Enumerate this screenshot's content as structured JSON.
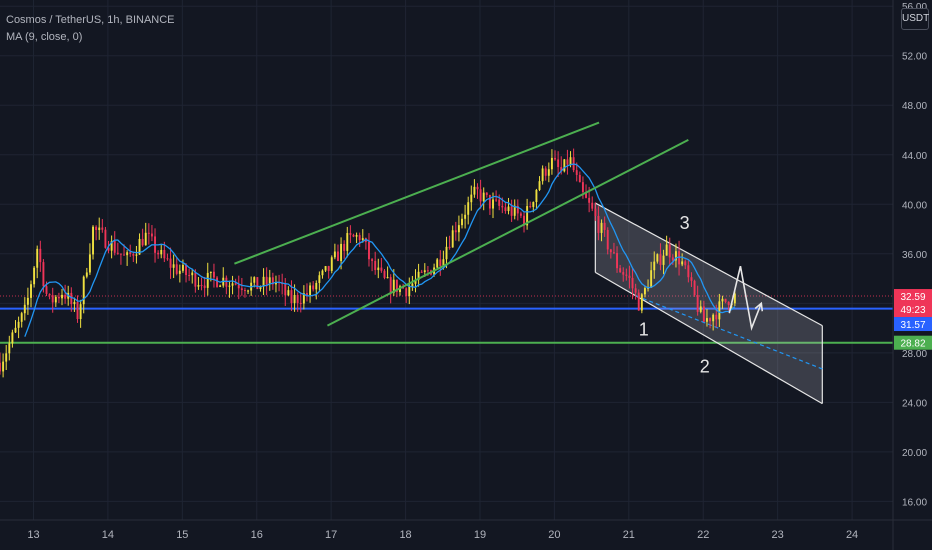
{
  "legend": {
    "title": "Cosmos / TetherUS, 1h, BINANCE",
    "indicator": "MA (9, close, 0)"
  },
  "currency": "USDT",
  "colors": {
    "background": "#131722",
    "bull": "#f0e040",
    "bear": "#ef3558",
    "ma": "#2196f3",
    "trendline": "#4caf50",
    "channel": "#e6e6e6",
    "blue_level": "#2962ff",
    "green_level": "#4caf50"
  },
  "chart_data": {
    "type": "candlestick",
    "x_ticks": [
      "13",
      "14",
      "15",
      "16",
      "17",
      "18",
      "19",
      "20",
      "21",
      "22",
      "23",
      "24"
    ],
    "y_ticks": [
      "16.00",
      "20.00",
      "24.00",
      "28.00",
      "32.00",
      "36.00",
      "40.00",
      "44.00",
      "48.00",
      "52.00",
      "56.00"
    ],
    "ylim": [
      14.5,
      56.5
    ],
    "xlim": [
      12.55,
      24.55
    ],
    "grid": true,
    "price_path": [
      [
        12.55,
        27.2
      ],
      [
        12.7,
        29.0
      ],
      [
        12.9,
        31.5
      ],
      [
        13.05,
        36.5
      ],
      [
        13.2,
        32.0
      ],
      [
        13.4,
        33.0
      ],
      [
        13.6,
        31.0
      ],
      [
        13.8,
        38.0
      ],
      [
        14.0,
        37.0
      ],
      [
        14.25,
        35.5
      ],
      [
        14.5,
        37.5
      ],
      [
        14.75,
        35.5
      ],
      [
        15.0,
        34.5
      ],
      [
        15.25,
        33.8
      ],
      [
        15.5,
        34.0
      ],
      [
        15.75,
        33.6
      ],
      [
        16.0,
        33.4
      ],
      [
        16.25,
        33.8
      ],
      [
        16.45,
        32.2
      ],
      [
        16.7,
        32.8
      ],
      [
        16.95,
        34.6
      ],
      [
        17.2,
        37.0
      ],
      [
        17.4,
        37.5
      ],
      [
        17.55,
        35.0
      ],
      [
        17.75,
        33.5
      ],
      [
        18.0,
        33.2
      ],
      [
        18.2,
        34.0
      ],
      [
        18.45,
        35.5
      ],
      [
        18.7,
        38.5
      ],
      [
        18.95,
        41.0
      ],
      [
        19.15,
        40.0
      ],
      [
        19.4,
        39.5
      ],
      [
        19.6,
        38.8
      ],
      [
        19.8,
        42.0
      ],
      [
        19.95,
        43.5
      ],
      [
        20.1,
        42.5
      ],
      [
        20.2,
        43.8
      ],
      [
        20.35,
        41.0
      ],
      [
        20.5,
        39.5
      ],
      [
        20.7,
        37.0
      ],
      [
        20.85,
        35.0
      ],
      [
        21.0,
        34.0
      ],
      [
        21.15,
        31.8
      ],
      [
        21.3,
        34.5
      ],
      [
        21.5,
        36.5
      ],
      [
        21.7,
        35.5
      ],
      [
        21.85,
        33.0
      ],
      [
        22.0,
        30.5
      ],
      [
        22.2,
        31.5
      ],
      [
        22.35,
        32.5
      ],
      [
        22.45,
        32.6
      ]
    ],
    "ma_period": 9,
    "levels": [
      {
        "name": "blue-level",
        "price": 31.57,
        "label": "31.57",
        "color": "#2962ff"
      },
      {
        "name": "green-level",
        "price": 28.82,
        "label": "28.82",
        "color": "#4caf50"
      }
    ],
    "current_price": {
      "price": 32.59,
      "label": "32.59",
      "countdown": "49:23",
      "color": "#ef3558"
    },
    "trendlines": [
      {
        "from": [
          15.7,
          35.2
        ],
        "to": [
          20.6,
          46.6
        ]
      },
      {
        "from": [
          16.95,
          30.2
        ],
        "to": [
          21.8,
          45.2
        ]
      }
    ],
    "channel": {
      "upper": {
        "from": [
          20.55,
          40.1
        ],
        "to": [
          23.6,
          30.2
        ]
      },
      "lower": {
        "from": [
          20.55,
          34.5
        ],
        "to": [
          23.6,
          23.9
        ]
      },
      "mid": {
        "from": [
          21.1,
          32.6
        ],
        "to": [
          23.6,
          26.7
        ]
      }
    },
    "projection": [
      [
        22.35,
        31.2
      ],
      [
        22.5,
        35.0
      ],
      [
        22.65,
        30.0
      ],
      [
        22.78,
        32.0
      ]
    ],
    "annotations": [
      {
        "label": "1",
        "x": 21.2,
        "price": 29.4
      },
      {
        "label": "2",
        "x": 22.02,
        "price": 26.4
      },
      {
        "label": "3",
        "x": 21.75,
        "price": 38.0
      }
    ]
  }
}
